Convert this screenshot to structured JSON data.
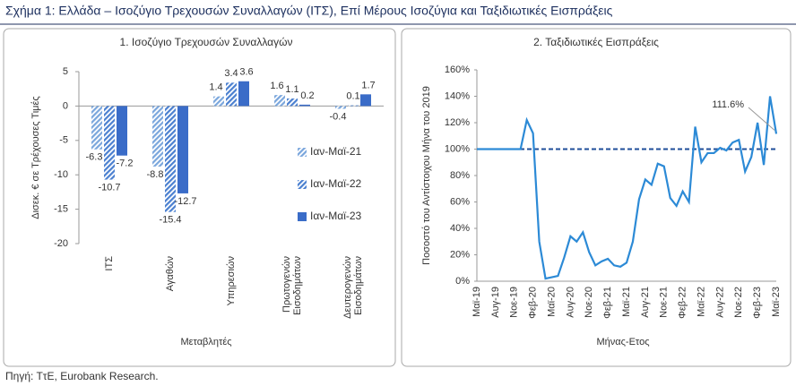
{
  "header": "Σχήμα 1: Ελλάδα – Ισοζύγιο Τρεχουσών Συναλλαγών (ΙΤΣ), Επί Μέρους Ισοζύγια και Ταξιδιωτικές Εισπράξεις",
  "footer": "Πηγή: ΤτΕ, Eurobank Research.",
  "chart_data": [
    {
      "type": "bar",
      "title": "1. Ισοζύγιο Τρεχουσών Συναλλαγών",
      "y_label": "Δισεκ. € σε Τρέχουσες Τιμές",
      "x_label": "Μεταβλητές",
      "categories": [
        "ΙΤΣ",
        "Αγαθών",
        "Υπηρεσιών",
        "Πρωτογενών Εισοδημάτων",
        "Δευτερογενών Εισοδημάτων"
      ],
      "series": [
        {
          "name": "Ιαν-Μαϊ-21",
          "color": "#7aa6dc",
          "pattern": "hatch",
          "values": [
            -6.3,
            -8.8,
            1.4,
            1.6,
            -0.4
          ]
        },
        {
          "name": "Ιαν-Μαϊ-22",
          "color": "#4b80d0",
          "pattern": "hatch",
          "values": [
            -10.7,
            -15.4,
            3.4,
            1.1,
            0.1
          ]
        },
        {
          "name": "Ιαν-Μαϊ-23",
          "color": "#3a6cc8",
          "pattern": "solid",
          "values": [
            -7.2,
            -12.7,
            3.6,
            0.2,
            1.7
          ]
        }
      ],
      "ylim": [
        -20,
        5
      ],
      "yticks": [
        -20,
        -15,
        -10,
        -5,
        0,
        5
      ]
    },
    {
      "type": "line",
      "title": "2. Ταξιδιωτικές Εισπράξεις",
      "y_label": "Ποσοστό του Αντίστοιχου Μήνα του 2019",
      "x_label": "Μήνας-Ετος",
      "categories": [
        "Μαϊ-19",
        null,
        null,
        "Αυγ-19",
        null,
        null,
        "Νοε-19",
        null,
        null,
        "Φεβ-20",
        null,
        null,
        "Μαϊ-20",
        null,
        null,
        "Αυγ-20",
        null,
        null,
        "Νοε-20",
        null,
        null,
        "Φεβ-21",
        null,
        null,
        "Μαϊ-21",
        null,
        null,
        "Αυγ-21",
        null,
        null,
        "Νοε-21",
        null,
        null,
        "Φεβ-22",
        null,
        null,
        "Μαϊ-22",
        null,
        null,
        "Αυγ-22",
        null,
        null,
        "Νοε-22",
        null,
        null,
        "Φεβ-23",
        null,
        null,
        "Μαϊ-23"
      ],
      "series": [
        {
          "name": "Ταξιδιωτικές Εισπράξεις",
          "color": "#2c8ad6",
          "values": [
            100,
            100,
            100,
            100,
            100,
            100,
            100,
            100,
            122,
            112,
            30,
            2,
            3,
            4,
            18,
            34,
            30,
            37,
            22,
            12,
            15,
            17,
            12,
            11,
            14,
            30,
            62,
            77,
            73,
            89,
            87,
            63,
            57,
            68,
            60,
            117,
            90,
            97,
            97,
            101,
            99,
            105,
            107,
            83,
            94,
            120,
            88,
            140,
            111.6
          ]
        }
      ],
      "reference_line": {
        "value": 100,
        "color": "#1f4e9a"
      },
      "annotations": [
        "111.6%"
      ],
      "ylim": [
        0,
        160
      ],
      "yticks": [
        {
          "value": 0,
          "label": "0%"
        },
        {
          "value": 20,
          "label": "20%"
        },
        {
          "value": 40,
          "label": "40%"
        },
        {
          "value": 60,
          "label": "60%"
        },
        {
          "value": 80,
          "label": "80%"
        },
        {
          "value": 100,
          "label": "100%"
        },
        {
          "value": 120,
          "label": "120%"
        },
        {
          "value": 140,
          "label": "140%"
        },
        {
          "value": 160,
          "label": "160%"
        }
      ]
    }
  ]
}
